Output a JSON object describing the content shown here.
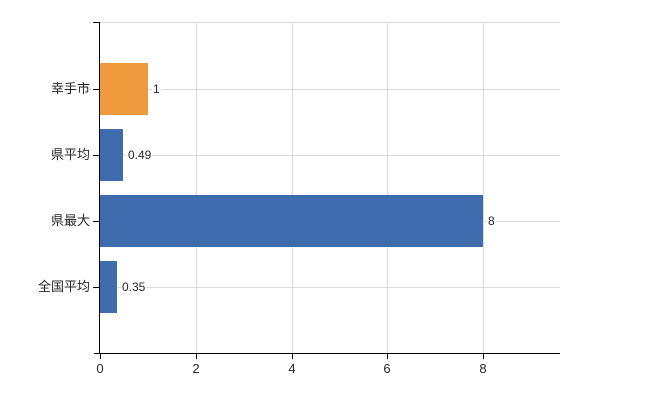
{
  "chart_data": {
    "type": "bar",
    "orientation": "horizontal",
    "title": "",
    "categories": [
      "幸手市",
      "県平均",
      "県最大",
      "全国平均"
    ],
    "values": [
      1,
      0.49,
      8,
      0.35
    ],
    "value_labels": [
      "1",
      "0.49",
      "8",
      "0.35"
    ],
    "bar_colors": [
      "#F09A3E",
      "#3D6BAB",
      "#3D6BAB",
      "#3D6BAB"
    ],
    "x_ticks": [
      "0",
      "2",
      "4",
      "6",
      "8"
    ],
    "x_tick_values": [
      0,
      2,
      4,
      6,
      8
    ],
    "xlim": [
      0,
      9.6
    ],
    "grid": true,
    "legend": "none",
    "colors": {
      "highlight_bar": "#F09A3E",
      "default_bar": "#3D6BAB",
      "gridline": "#DBDBDB",
      "axis": "#000000",
      "text": "#262626",
      "background": "#FFFFFF"
    }
  }
}
